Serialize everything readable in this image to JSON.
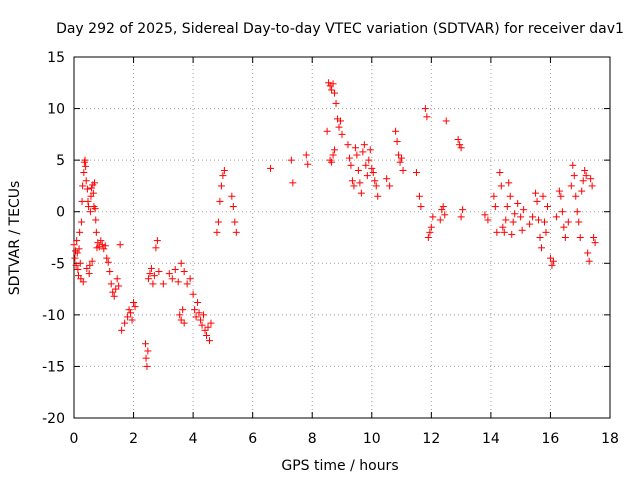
{
  "chart_data": {
    "type": "scatter",
    "title": "Day 292 of 2025, Sidereal Day-to-day VTEC variation (SDTVAR) for receiver dav1",
    "xlabel": "GPS time / hours",
    "ylabel": "SDTVAR / TECUs",
    "xlim": [
      0,
      18
    ],
    "ylim": [
      -20,
      15
    ],
    "xticks": [
      0,
      2,
      4,
      6,
      8,
      10,
      12,
      14,
      16,
      18
    ],
    "yticks": [
      -20,
      -15,
      -10,
      -5,
      0,
      5,
      10,
      15
    ],
    "xtick_labels": [
      "0",
      "2",
      "4",
      "6",
      "8",
      "10",
      "12",
      "14",
      "16",
      "18"
    ],
    "ytick_labels": [
      "-20",
      "-15",
      "-10",
      "-5",
      "0",
      "5",
      "10",
      "15"
    ],
    "grid": true,
    "marker": "+",
    "series": [
      {
        "name": "dav1",
        "color": "#ff0000",
        "points": [
          [
            0.0,
            -3.2
          ],
          [
            0.03,
            -4.5
          ],
          [
            0.05,
            -3.8
          ],
          [
            0.07,
            -5.2
          ],
          [
            0.09,
            -2.8
          ],
          [
            0.11,
            -4.0
          ],
          [
            0.13,
            -5.6
          ],
          [
            0.15,
            -6.2
          ],
          [
            0.17,
            -3.6
          ],
          [
            0.19,
            -2.0
          ],
          [
            0.21,
            -5.0
          ],
          [
            0.23,
            -6.5
          ],
          [
            0.25,
            -1.0
          ],
          [
            0.27,
            1.0
          ],
          [
            0.29,
            2.5
          ],
          [
            0.31,
            -6.8
          ],
          [
            0.33,
            3.8
          ],
          [
            0.35,
            4.8
          ],
          [
            0.37,
            5.0
          ],
          [
            0.39,
            4.4
          ],
          [
            0.41,
            3.0
          ],
          [
            0.43,
            -5.5
          ],
          [
            0.45,
            2.2
          ],
          [
            0.47,
            1.0
          ],
          [
            0.49,
            0.5
          ],
          [
            0.51,
            -6.0
          ],
          [
            0.53,
            -5.2
          ],
          [
            0.55,
            0.0
          ],
          [
            0.57,
            1.5
          ],
          [
            0.59,
            2.3
          ],
          [
            0.61,
            -4.8
          ],
          [
            0.63,
            2.6
          ],
          [
            0.65,
            1.8
          ],
          [
            0.67,
            0.5
          ],
          [
            0.69,
            2.8
          ],
          [
            0.71,
            0.3
          ],
          [
            0.73,
            -0.8
          ],
          [
            0.75,
            -2.0
          ],
          [
            0.77,
            -3.5
          ],
          [
            0.8,
            -3.0
          ],
          [
            0.85,
            -3.4
          ],
          [
            0.9,
            -2.8
          ],
          [
            0.95,
            -3.2
          ],
          [
            1.0,
            -3.6
          ],
          [
            1.05,
            -3.3
          ],
          [
            1.1,
            -4.5
          ],
          [
            1.15,
            -4.9
          ],
          [
            1.2,
            -5.8
          ],
          [
            1.25,
            -7.0
          ],
          [
            1.3,
            -7.8
          ],
          [
            1.35,
            -8.2
          ],
          [
            1.4,
            -7.5
          ],
          [
            1.45,
            -6.5
          ],
          [
            1.5,
            -7.2
          ],
          [
            1.55,
            -3.2
          ],
          [
            1.6,
            -11.5
          ],
          [
            1.7,
            -10.8
          ],
          [
            1.8,
            -10.2
          ],
          [
            1.85,
            -9.5
          ],
          [
            1.9,
            -9.8
          ],
          [
            1.95,
            -10.5
          ],
          [
            2.0,
            -8.8
          ],
          [
            2.05,
            -9.2
          ],
          [
            2.4,
            -12.8
          ],
          [
            2.42,
            -14.2
          ],
          [
            2.45,
            -15.0
          ],
          [
            2.48,
            -13.5
          ],
          [
            2.5,
            -6.5
          ],
          [
            2.55,
            -6.0
          ],
          [
            2.6,
            -5.5
          ],
          [
            2.65,
            -7.0
          ],
          [
            2.7,
            -6.2
          ],
          [
            2.75,
            -3.5
          ],
          [
            2.8,
            -2.8
          ],
          [
            2.85,
            -5.8
          ],
          [
            3.0,
            -7.0
          ],
          [
            3.2,
            -6.0
          ],
          [
            3.3,
            -6.5
          ],
          [
            3.4,
            -5.6
          ],
          [
            3.5,
            -6.8
          ],
          [
            3.6,
            -5.0
          ],
          [
            3.7,
            -5.8
          ],
          [
            3.55,
            -10.0
          ],
          [
            3.6,
            -10.5
          ],
          [
            3.65,
            -9.5
          ],
          [
            3.7,
            -10.8
          ],
          [
            3.8,
            -7.0
          ],
          [
            3.9,
            -6.5
          ],
          [
            4.0,
            -8.0
          ],
          [
            4.05,
            -9.5
          ],
          [
            4.1,
            -10.2
          ],
          [
            4.15,
            -8.8
          ],
          [
            4.2,
            -9.8
          ],
          [
            4.25,
            -10.5
          ],
          [
            4.3,
            -11.0
          ],
          [
            4.35,
            -10.0
          ],
          [
            4.4,
            -11.5
          ],
          [
            4.45,
            -12.0
          ],
          [
            4.5,
            -11.2
          ],
          [
            4.55,
            -12.5
          ],
          [
            4.6,
            -10.8
          ],
          [
            4.8,
            -2.0
          ],
          [
            4.85,
            -1.0
          ],
          [
            4.9,
            1.0
          ],
          [
            4.95,
            2.5
          ],
          [
            5.0,
            3.5
          ],
          [
            5.05,
            4.0
          ],
          [
            5.3,
            1.5
          ],
          [
            5.35,
            0.5
          ],
          [
            5.4,
            -1.0
          ],
          [
            5.45,
            -2.0
          ],
          [
            6.6,
            4.2
          ],
          [
            7.3,
            5.0
          ],
          [
            7.35,
            2.8
          ],
          [
            7.8,
            5.5
          ],
          [
            7.85,
            4.6
          ],
          [
            8.5,
            7.8
          ],
          [
            8.55,
            12.5
          ],
          [
            8.6,
            12.2
          ],
          [
            8.65,
            11.8
          ],
          [
            8.7,
            12.4
          ],
          [
            8.75,
            11.5
          ],
          [
            8.8,
            10.5
          ],
          [
            8.85,
            9.0
          ],
          [
            8.9,
            8.2
          ],
          [
            8.95,
            8.8
          ],
          [
            9.0,
            7.5
          ],
          [
            8.6,
            5.0
          ],
          [
            8.65,
            4.8
          ],
          [
            8.7,
            5.5
          ],
          [
            8.75,
            6.0
          ],
          [
            9.2,
            6.5
          ],
          [
            9.25,
            5.2
          ],
          [
            9.3,
            4.5
          ],
          [
            9.35,
            3.0
          ],
          [
            9.4,
            2.5
          ],
          [
            9.45,
            6.2
          ],
          [
            9.5,
            5.5
          ],
          [
            9.55,
            4.0
          ],
          [
            9.6,
            2.8
          ],
          [
            9.65,
            1.8
          ],
          [
            9.7,
            5.8
          ],
          [
            9.75,
            6.5
          ],
          [
            9.8,
            4.5
          ],
          [
            9.85,
            3.5
          ],
          [
            9.9,
            5.0
          ],
          [
            9.95,
            6.0
          ],
          [
            10.0,
            4.2
          ],
          [
            10.05,
            3.8
          ],
          [
            10.1,
            3.0
          ],
          [
            10.15,
            2.5
          ],
          [
            10.2,
            1.5
          ],
          [
            10.5,
            3.2
          ],
          [
            10.6,
            2.5
          ],
          [
            10.8,
            7.8
          ],
          [
            10.85,
            6.8
          ],
          [
            10.9,
            5.5
          ],
          [
            10.95,
            4.8
          ],
          [
            11.0,
            5.2
          ],
          [
            11.05,
            4.0
          ],
          [
            11.5,
            3.8
          ],
          [
            11.6,
            1.5
          ],
          [
            11.65,
            0.5
          ],
          [
            11.8,
            10.0
          ],
          [
            11.85,
            9.2
          ],
          [
            11.9,
            -2.5
          ],
          [
            11.95,
            -2.0
          ],
          [
            12.0,
            -1.5
          ],
          [
            12.05,
            -0.5
          ],
          [
            12.3,
            -0.8
          ],
          [
            12.35,
            0.2
          ],
          [
            12.4,
            0.5
          ],
          [
            12.45,
            -0.3
          ],
          [
            12.5,
            8.8
          ],
          [
            12.9,
            7.0
          ],
          [
            12.95,
            6.5
          ],
          [
            13.0,
            6.2
          ],
          [
            13.05,
            0.2
          ],
          [
            13.0,
            -0.5
          ],
          [
            13.8,
            -0.3
          ],
          [
            13.9,
            -0.8
          ],
          [
            14.1,
            1.5
          ],
          [
            14.15,
            0.5
          ],
          [
            14.2,
            -2.0
          ],
          [
            14.3,
            3.8
          ],
          [
            14.35,
            2.5
          ],
          [
            14.4,
            -1.5
          ],
          [
            14.45,
            -2.0
          ],
          [
            14.5,
            -0.8
          ],
          [
            14.55,
            0.5
          ],
          [
            14.6,
            2.8
          ],
          [
            14.65,
            1.5
          ],
          [
            14.7,
            -2.2
          ],
          [
            14.75,
            -1.0
          ],
          [
            14.8,
            -0.2
          ],
          [
            14.9,
            0.8
          ],
          [
            15.0,
            -0.5
          ],
          [
            15.05,
            -1.8
          ],
          [
            15.1,
            0.2
          ],
          [
            15.3,
            -1.2
          ],
          [
            15.4,
            -0.5
          ],
          [
            15.5,
            1.8
          ],
          [
            15.55,
            1.0
          ],
          [
            15.6,
            -0.8
          ],
          [
            15.65,
            -2.5
          ],
          [
            15.7,
            -3.5
          ],
          [
            15.75,
            1.5
          ],
          [
            15.8,
            -1.0
          ],
          [
            15.85,
            -2.0
          ],
          [
            15.9,
            0.5
          ],
          [
            16.0,
            -4.5
          ],
          [
            16.05,
            -5.2
          ],
          [
            16.1,
            -4.8
          ],
          [
            16.2,
            -0.5
          ],
          [
            16.3,
            2.0
          ],
          [
            16.35,
            1.5
          ],
          [
            16.4,
            0.0
          ],
          [
            16.45,
            -1.5
          ],
          [
            16.5,
            -2.5
          ],
          [
            16.6,
            -1.0
          ],
          [
            16.7,
            2.5
          ],
          [
            16.75,
            4.5
          ],
          [
            16.8,
            3.5
          ],
          [
            16.85,
            1.5
          ],
          [
            16.9,
            0.0
          ],
          [
            16.95,
            -1.0
          ],
          [
            17.0,
            -2.5
          ],
          [
            17.05,
            2.0
          ],
          [
            17.1,
            3.0
          ],
          [
            17.15,
            4.0
          ],
          [
            17.2,
            3.5
          ],
          [
            17.25,
            -4.0
          ],
          [
            17.3,
            -4.8
          ],
          [
            17.35,
            3.2
          ],
          [
            17.4,
            2.5
          ],
          [
            17.45,
            -2.5
          ],
          [
            17.5,
            -3.0
          ]
        ]
      }
    ]
  }
}
